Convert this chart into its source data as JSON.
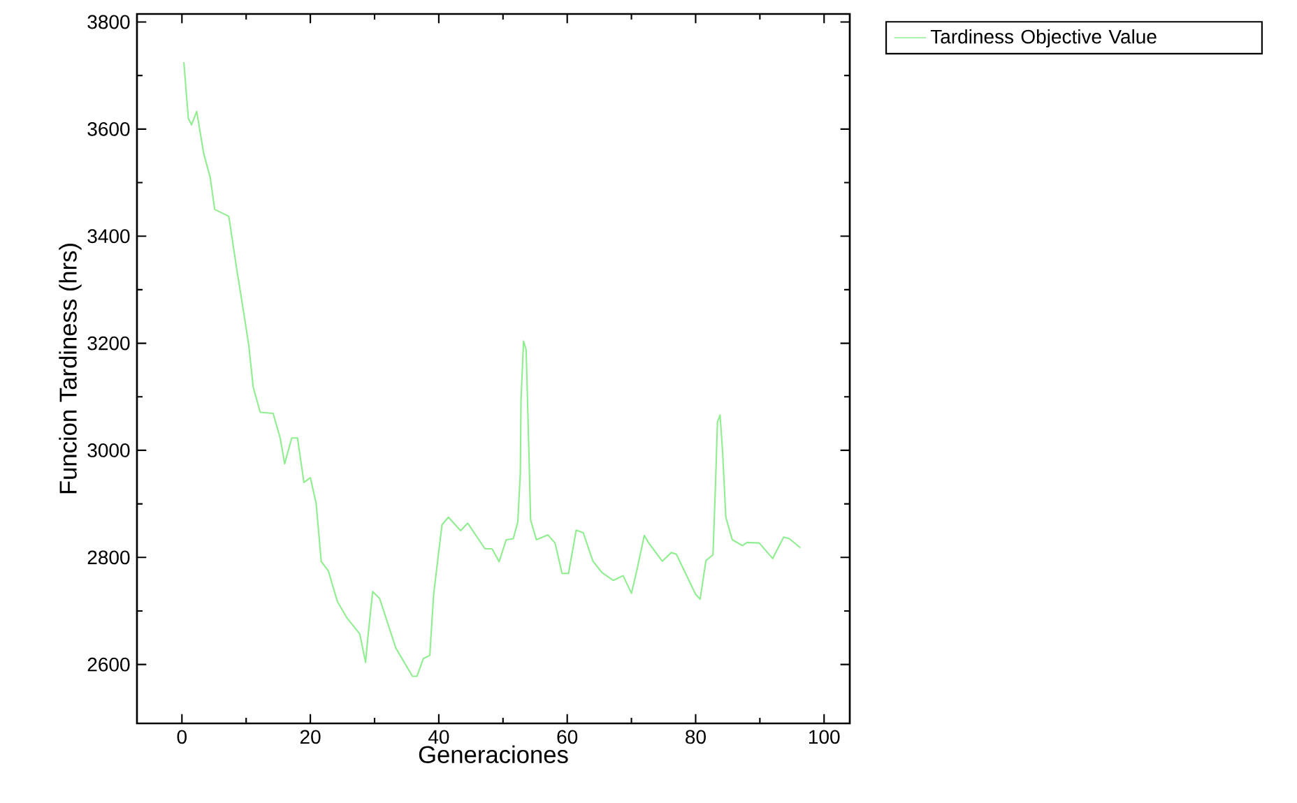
{
  "chart_data": {
    "type": "line",
    "xlabel": "Generaciones",
    "ylabel": "Funcion Tardiness (hrs)",
    "xlim": [
      -7,
      104
    ],
    "ylim": [
      2490,
      3815
    ],
    "xticks": [
      0,
      20,
      40,
      60,
      80,
      100
    ],
    "yticks": [
      2600,
      2800,
      3000,
      3200,
      3400,
      3600,
      3800
    ],
    "grid": false,
    "legend": "top right",
    "marker": "none",
    "line_style": "solid",
    "series": [
      {
        "name": "Tardiness Objective Value",
        "color": "#90ee90",
        "x": [
          0.3,
          1,
          1.5,
          2.3,
          3.4,
          4.4,
          5.1,
          7.3,
          8.5,
          9.6,
          10.4,
          11.1,
          12.2,
          14.2,
          15.3,
          16,
          17.1,
          18,
          19,
          20,
          20.9,
          21.7,
          22.8,
          24.2,
          25.7,
          27.7,
          28.6,
          28.9,
          29.7,
          30.8,
          33.3,
          35.9,
          36.6,
          37.6,
          38.6,
          39.2,
          40.5,
          41.5,
          43.4,
          44.5,
          47.2,
          48.3,
          49.4,
          50.5,
          51.6,
          52.3,
          52.7,
          52.8,
          53.2,
          53.6,
          53.9,
          54.3,
          55.2,
          57,
          58.1,
          59.2,
          60.2,
          61.4,
          62.5,
          64,
          65.4,
          67.2,
          68.7,
          70,
          70.9,
          72,
          72.7,
          74.8,
          76.2,
          77,
          80,
          80.7,
          81.6,
          82.7,
          83.1,
          83.4,
          83.8,
          84.2,
          84.7,
          85.7,
          87.3,
          88,
          89.9,
          92,
          93.7,
          94.6,
          96.3
        ],
        "values": [
          3725,
          3620,
          3608,
          3633,
          3554,
          3510,
          3450,
          3437,
          3341,
          3259,
          3197,
          3118,
          3071,
          3069,
          3023,
          2975,
          3023,
          3023,
          2940,
          2949,
          2901,
          2792,
          2775,
          2718,
          2687,
          2657,
          2604,
          2644,
          2736,
          2723,
          2631,
          2578,
          2578,
          2611,
          2617,
          2731,
          2861,
          2875,
          2850,
          2864,
          2816,
          2816,
          2792,
          2833,
          2835,
          2866,
          2958,
          3092,
          3204,
          3188,
          3058,
          2870,
          2833,
          2842,
          2827,
          2770,
          2770,
          2851,
          2846,
          2793,
          2772,
          2757,
          2766,
          2733,
          2779,
          2841,
          2827,
          2793,
          2809,
          2806,
          2731,
          2722,
          2794,
          2805,
          2940,
          3053,
          3066,
          2997,
          2875,
          2833,
          2822,
          2828,
          2827,
          2798,
          2838,
          2835,
          2818
        ]
      }
    ]
  }
}
